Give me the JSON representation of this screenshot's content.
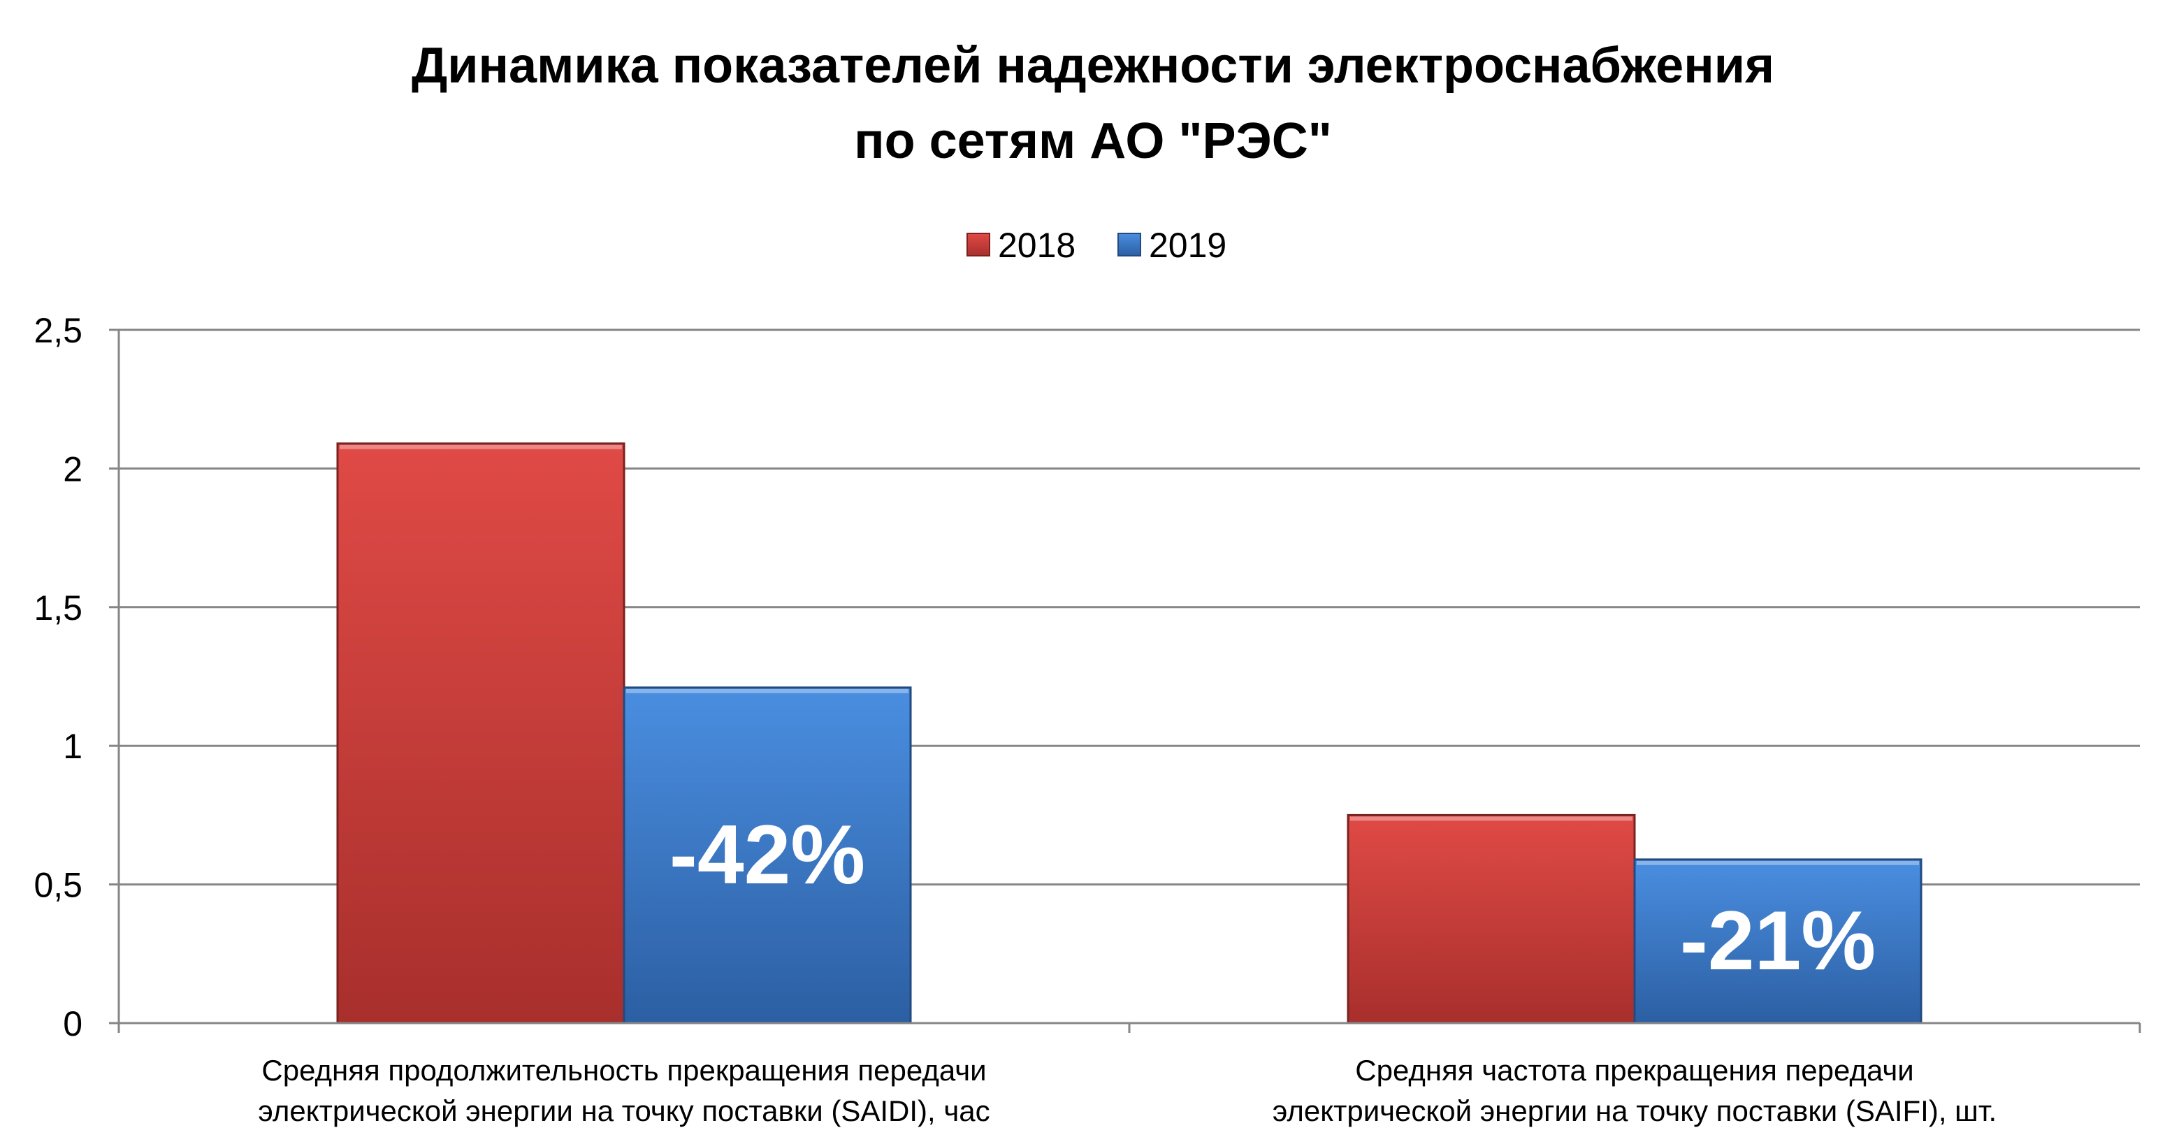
{
  "chart_data": {
    "type": "bar",
    "title_lines": [
      "Динамика показателей надежности электроснабжения",
      "по сетям АО \"РЭС\""
    ],
    "categories": [
      [
        "Средняя продолжительность прекращения передачи",
        "электрической энергии на точку поставки (SAIDI), час"
      ],
      [
        "Средняя частота прекращения передачи",
        "электрической энергии на точку поставки (SAIFI), шт."
      ]
    ],
    "series": [
      {
        "name": "2018",
        "values": [
          2.09,
          0.75
        ],
        "color": "#d9413d"
      },
      {
        "name": "2019",
        "values": [
          1.21,
          0.59
        ],
        "color": "#3f80cf"
      }
    ],
    "change_labels": [
      "-42%",
      "-21%"
    ],
    "yticks": [
      "0",
      "0,5",
      "1",
      "1,5",
      "2",
      "2,5"
    ],
    "ylim": [
      0,
      2.5
    ],
    "grid": true,
    "legend_position": "top-center"
  }
}
